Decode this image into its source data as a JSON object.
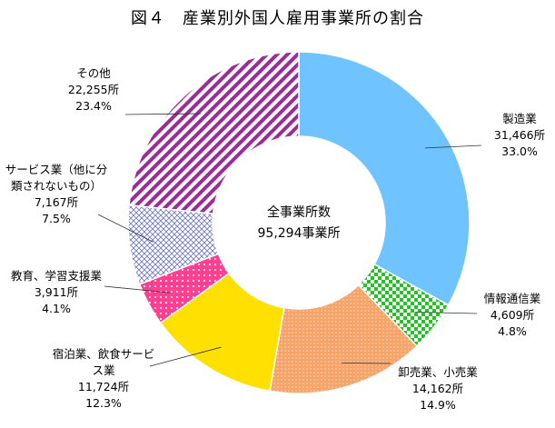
{
  "chart_data": {
    "type": "pie",
    "title": "図４　産業別外国人雇用事業所の割合",
    "center_label": [
      "全事業所数",
      "95,294事業所"
    ],
    "unit": "所",
    "total": 95294,
    "slices": [
      {
        "name": "製造業",
        "value": 31466,
        "percent": "33.0%",
        "color": "#6fc3ff",
        "pattern": "solid"
      },
      {
        "name": "情報通信業",
        "value": 4609,
        "percent": "4.8%",
        "color": "#22c322",
        "pattern": "checker"
      },
      {
        "name": "卸売業、小売業",
        "value": 14162,
        "percent": "14.9%",
        "color": "#f6a46a",
        "pattern": "dots"
      },
      {
        "name": "宿泊業、飲食サービス業",
        "value": 11724,
        "percent": "12.3%",
        "color": "#ffe000",
        "pattern": "solid"
      },
      {
        "name": "教育、学習支援業",
        "value": 3911,
        "percent": "4.1%",
        "color": "#ff3f8f",
        "pattern": "dots-white"
      },
      {
        "name": "サービス業（他に分類されないもの）",
        "value": 7167,
        "percent": "7.5%",
        "color": "#6a74c8",
        "pattern": "grid"
      },
      {
        "name": "その他",
        "value": 22255,
        "percent": "23.4%",
        "color": "#9b2a9b",
        "pattern": "stripes"
      }
    ],
    "labels": [
      {
        "lines": [
          "製造業",
          "31,466所",
          "33.0%"
        ]
      },
      {
        "lines": [
          "情報通信業",
          "4,609所",
          "4.8%"
        ]
      },
      {
        "lines": [
          "卸売業、小売業",
          "14,162所",
          "14.9%"
        ]
      },
      {
        "lines": [
          "宿泊業、飲食サービ",
          "ス業",
          "11,724所",
          "12.3%"
        ]
      },
      {
        "lines": [
          "教育、学習支援業",
          "3,911所",
          "4.1%"
        ]
      },
      {
        "lines": [
          "サービス業（他に分",
          "類されないもの）",
          "7,167所",
          "7.5%"
        ]
      },
      {
        "lines": [
          "その他",
          "22,255所",
          "23.4%"
        ]
      }
    ]
  }
}
